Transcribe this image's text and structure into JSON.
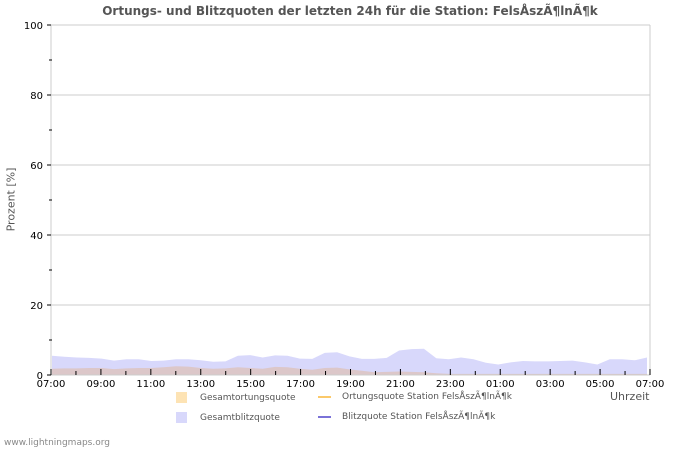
{
  "title": "Ortungs- und Blitzquoten der letzten 24h für die Station: FelsÅszÃ¶lnÃ¶k",
  "footer": "www.lightningmaps.org",
  "colors": {
    "grid": "#cccccc",
    "gesamtortungsquote": "#fde3b4",
    "gesamtblitzquote": "#d8d8fb",
    "overlap": "#dcc7c9",
    "ortungsquote_station": "#fbc96a",
    "blitzquote_station": "#7a72d8"
  },
  "legend": [
    {
      "label": "Gesamtortungsquote",
      "type": "area",
      "color": "#fde3b4"
    },
    {
      "label": "Ortungsquote Station FelsÅszÃ¶lnÃ¶k",
      "type": "line",
      "color": "#fbc96a"
    },
    {
      "label": "Gesamtblitzquote",
      "type": "area",
      "color": "#d8d8fb"
    },
    {
      "label": "Blitzquote Station FelsÅszÃ¶lnÃ¶k",
      "type": "line",
      "color": "#7a72d8"
    }
  ],
  "chart_data": {
    "type": "area",
    "title": "Ortungs- und Blitzquoten der letzten 24h für die Station: FelsÅszÃ¶lnÃ¶k",
    "xlabel": "Uhrzeit",
    "ylabel": "Prozent   [%]",
    "ylim": [
      0,
      100
    ],
    "yticks": [
      0,
      20,
      40,
      60,
      80,
      100
    ],
    "xtick_labels": [
      "07:00",
      "09:00",
      "11:00",
      "13:00",
      "15:00",
      "17:00",
      "19:00",
      "21:00",
      "23:00",
      "01:00",
      "03:00",
      "05:00",
      "07:00"
    ],
    "grid": true,
    "legend_position": "bottom",
    "x": [
      "07:00",
      "07:30",
      "08:00",
      "08:30",
      "09:00",
      "09:30",
      "10:00",
      "10:30",
      "11:00",
      "11:30",
      "12:00",
      "12:30",
      "13:00",
      "13:30",
      "14:00",
      "14:30",
      "15:00",
      "15:30",
      "16:00",
      "16:30",
      "17:00",
      "17:30",
      "18:00",
      "18:30",
      "19:00",
      "19:30",
      "20:00",
      "20:30",
      "21:00",
      "21:30",
      "22:00",
      "22:30",
      "23:00",
      "23:30",
      "00:00",
      "00:30",
      "01:00",
      "01:30",
      "02:00",
      "02:30",
      "03:00",
      "03:30",
      "04:00",
      "04:30",
      "05:00",
      "05:30",
      "06:00",
      "06:30",
      "07:00"
    ],
    "series": [
      {
        "name": "Gesamtblitzquote",
        "values": [
          5.5,
          5.2,
          5.0,
          4.9,
          4.7,
          4.1,
          4.5,
          4.5,
          4.0,
          4.1,
          4.5,
          4.5,
          4.2,
          3.8,
          3.9,
          5.5,
          5.7,
          5.0,
          5.6,
          5.5,
          4.7,
          4.6,
          6.3,
          6.5,
          5.3,
          4.6,
          4.6,
          4.9,
          7.0,
          7.4,
          7.5,
          4.8,
          4.5,
          5.0,
          4.5,
          3.5,
          3.0,
          3.6,
          4.0,
          3.9,
          3.9,
          4.0,
          4.1,
          3.6,
          3.0,
          4.5,
          4.5,
          4.2,
          5.0
        ]
      },
      {
        "name": "Gesamtortungsquote",
        "values": [
          1.8,
          1.9,
          1.9,
          2.0,
          2.0,
          1.7,
          1.9,
          2.0,
          2.0,
          2.2,
          2.5,
          2.4,
          2.0,
          1.8,
          1.9,
          2.2,
          2.0,
          1.8,
          2.3,
          2.2,
          1.8,
          1.5,
          2.0,
          2.1,
          1.6,
          1.2,
          0.8,
          0.9,
          1.0,
          0.9,
          0.8,
          0.5,
          0.3,
          0.3,
          0.3,
          0.3,
          0.3,
          0.3,
          0.3,
          0.3,
          0.3,
          0.3,
          0.3,
          0.3,
          0.3,
          0.3,
          0.3,
          0.3,
          0.3
        ]
      },
      {
        "name": "Ortungsquote Station FelsÅszÃ¶lnÃ¶k",
        "values": []
      },
      {
        "name": "Blitzquote Station FelsÅszÃ¶lnÃ¶k",
        "values": []
      }
    ]
  },
  "axis": {
    "ylabel": "Prozent   [%]",
    "xlabel": "Uhrzeit"
  }
}
